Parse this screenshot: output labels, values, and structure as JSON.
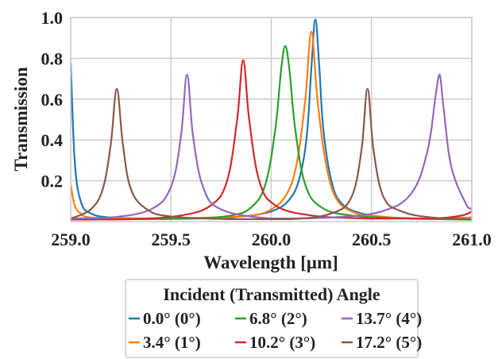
{
  "chart_data": {
    "type": "line",
    "xlabel": "Wavelength [μm]",
    "ylabel": "Transmission",
    "xlim": [
      259.0,
      261.0
    ],
    "ylim": [
      0.0,
      1.0
    ],
    "xticks": [
      {
        "value": 259.0,
        "label": "259.0"
      },
      {
        "value": 259.5,
        "label": "259.5"
      },
      {
        "value": 260.0,
        "label": "260.0"
      },
      {
        "value": 260.5,
        "label": "260.5"
      },
      {
        "value": 261.0,
        "label": "261.0"
      }
    ],
    "yticks": [
      {
        "value": 0.2,
        "label": "0.2"
      },
      {
        "value": 0.4,
        "label": "0.4"
      },
      {
        "value": 0.6,
        "label": "0.6"
      },
      {
        "value": 0.8,
        "label": "0.8"
      },
      {
        "value": 1.0,
        "label": "1.0"
      }
    ],
    "grid": true,
    "legend": {
      "title": "Incident (Transmitted) Angle",
      "placement": "below"
    },
    "series": [
      {
        "name": "0.0° (0°)",
        "color": "#1f77b4",
        "x": [
          259.0,
          259.02,
          259.05,
          259.1,
          259.2,
          259.4,
          259.6,
          259.8,
          260.0,
          260.1,
          260.15,
          260.18,
          260.2,
          260.22,
          260.24,
          260.26,
          260.3,
          260.35,
          260.45,
          260.6,
          260.8,
          261.0
        ],
        "y": [
          0.78,
          0.3,
          0.1,
          0.04,
          0.02,
          0.015,
          0.015,
          0.02,
          0.05,
          0.12,
          0.25,
          0.45,
          0.75,
          0.99,
          0.75,
          0.45,
          0.2,
          0.09,
          0.04,
          0.02,
          0.015,
          0.02
        ]
      },
      {
        "name": "3.4° (1°)",
        "color": "#ff7f0e",
        "x": [
          259.0,
          259.02,
          259.05,
          259.1,
          259.3,
          259.5,
          259.7,
          259.9,
          260.0,
          260.08,
          260.13,
          260.17,
          260.2,
          260.23,
          260.27,
          260.32,
          260.4,
          260.5,
          260.7,
          261.0
        ],
        "y": [
          0.18,
          0.08,
          0.04,
          0.02,
          0.015,
          0.015,
          0.02,
          0.03,
          0.06,
          0.14,
          0.3,
          0.6,
          0.93,
          0.6,
          0.3,
          0.12,
          0.05,
          0.03,
          0.015,
          0.02
        ]
      },
      {
        "name": "6.8° (2°)",
        "color": "#2ca02c",
        "x": [
          259.0,
          259.3,
          259.6,
          259.8,
          259.9,
          259.97,
          260.02,
          260.05,
          260.07,
          260.09,
          260.12,
          260.17,
          260.25,
          260.4,
          260.7,
          261.0
        ],
        "y": [
          0.01,
          0.012,
          0.015,
          0.03,
          0.07,
          0.18,
          0.45,
          0.75,
          0.86,
          0.75,
          0.45,
          0.18,
          0.07,
          0.03,
          0.015,
          0.01
        ]
      },
      {
        "name": "10.2° (3°)",
        "color": "#d62728",
        "x": [
          259.0,
          259.3,
          259.55,
          259.7,
          259.78,
          259.83,
          259.86,
          259.89,
          259.94,
          260.02,
          260.2,
          260.5,
          260.8,
          260.95,
          261.0
        ],
        "y": [
          0.01,
          0.012,
          0.03,
          0.08,
          0.2,
          0.5,
          0.79,
          0.5,
          0.2,
          0.08,
          0.03,
          0.015,
          0.015,
          0.03,
          0.05
        ]
      },
      {
        "name": "13.7° (4°)",
        "color": "#9467bd",
        "x": [
          259.0,
          259.2,
          259.4,
          259.5,
          259.55,
          259.58,
          259.61,
          259.66,
          259.75,
          260.0,
          260.3,
          260.55,
          260.7,
          260.78,
          260.82,
          260.84,
          260.86,
          260.9,
          260.98,
          261.0
        ],
        "y": [
          0.015,
          0.02,
          0.06,
          0.17,
          0.42,
          0.72,
          0.42,
          0.17,
          0.06,
          0.015,
          0.02,
          0.05,
          0.14,
          0.35,
          0.62,
          0.72,
          0.55,
          0.26,
          0.07,
          0.06
        ]
      },
      {
        "name": "17.2° (5°)",
        "color": "#8c564b",
        "x": [
          259.0,
          259.1,
          259.16,
          259.2,
          259.23,
          259.26,
          259.3,
          259.38,
          259.5,
          259.8,
          260.1,
          260.3,
          260.4,
          260.45,
          260.48,
          260.51,
          260.56,
          260.65,
          260.8,
          261.0
        ],
        "y": [
          0.015,
          0.06,
          0.16,
          0.38,
          0.65,
          0.38,
          0.16,
          0.06,
          0.025,
          0.012,
          0.012,
          0.04,
          0.12,
          0.35,
          0.65,
          0.35,
          0.12,
          0.05,
          0.02,
          0.012
        ]
      }
    ]
  }
}
